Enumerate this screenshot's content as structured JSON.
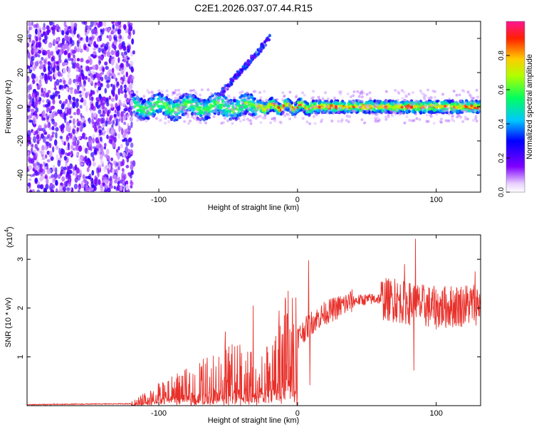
{
  "title": "C2E1.2026.037.07.44.R15",
  "chart_data": [
    {
      "type": "heatmap",
      "name": "spectrogram",
      "xlabel": "Height of straight line (km)",
      "ylabel": "Frequency (Hz)",
      "xlim": [
        -195,
        132
      ],
      "ylim": [
        -50,
        50
      ],
      "xticks": [
        -100,
        0,
        100
      ],
      "yticks": [
        -40,
        -20,
        0,
        20,
        40
      ],
      "colorbar": {
        "label": "Normalized spectral amplitude",
        "range": [
          0,
          1
        ],
        "ticks": [
          0.0,
          0.2,
          0.4,
          0.6,
          0.8
        ],
        "tick_labels": [
          "0.0",
          "0.2",
          "0.4",
          "0.6",
          "0.8"
        ],
        "colormap": [
          "#ffffff",
          "#8000ff",
          "#0000ff",
          "#00ffff",
          "#00ff00",
          "#ffff00",
          "#ff0000",
          "#ff1493"
        ]
      },
      "features": [
        {
          "label": "broadband noise",
          "x_range": [
            -195,
            -118
          ],
          "freq_range": [
            -50,
            50
          ],
          "amplitude": 0.15
        },
        {
          "label": "central band",
          "x_range": [
            -118,
            132
          ],
          "freq_center": 0,
          "amplitude_mean": 0.6
        },
        {
          "label": "rising harmonic",
          "x_range": [
            -55,
            -20
          ],
          "freq_range": [
            8,
            40
          ],
          "amplitude": 0.25
        }
      ]
    },
    {
      "type": "line",
      "name": "snr",
      "xlabel": "Height of straight line (km)",
      "ylabel": "SNR (10 * v/v)",
      "y_multiplier": "(x10",
      "y_multiplier_exp": "4",
      "y_multiplier_close": ")",
      "xlim": [
        -195,
        132
      ],
      "ylim": [
        0,
        3.5
      ],
      "xticks": [
        -100,
        0,
        100
      ],
      "yticks": [
        1,
        2,
        3
      ],
      "color": "#e8302a",
      "envelope_x": [
        -195,
        -120,
        -100,
        -80,
        -60,
        -40,
        -30,
        -20,
        -10,
        0,
        10,
        20,
        40,
        60,
        80,
        100,
        132
      ],
      "envelope_y": [
        0.02,
        0.04,
        0.25,
        0.4,
        0.6,
        0.75,
        0.5,
        0.7,
        1.2,
        1.4,
        1.7,
        1.9,
        2.15,
        2.2,
        2.1,
        2.0,
        2.1
      ],
      "spikes": [
        {
          "x": -52,
          "y": 1.52
        },
        {
          "x": -32,
          "y": 2.05
        },
        {
          "x": 8,
          "y": 2.98
        },
        {
          "x": 85,
          "y": 3.42
        },
        {
          "x": 84,
          "y": 0.72
        },
        {
          "x": 77,
          "y": 2.9
        },
        {
          "x": 70,
          "y": 2.6
        },
        {
          "x": 128,
          "y": 2.75
        },
        {
          "x": 9,
          "y": 0.42
        }
      ]
    }
  ]
}
